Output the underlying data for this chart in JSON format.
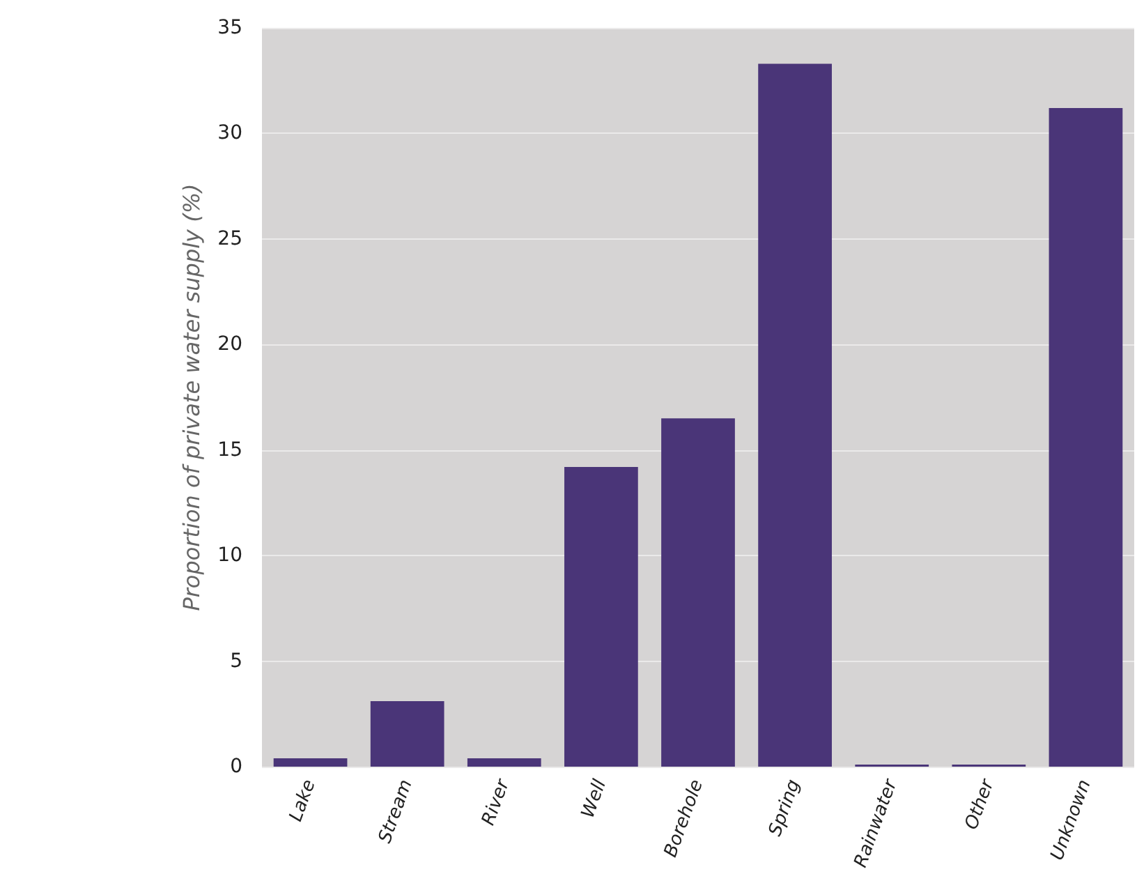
{
  "chart_data": {
    "type": "bar",
    "ylabel": "Proportion of private water supply (%)",
    "categories": [
      "Lake",
      "Stream",
      "River",
      "Well",
      "Borehole",
      "Spring",
      "Rainwater",
      "Other",
      "Unknown"
    ],
    "values": [
      0.4,
      3.1,
      0.4,
      14.2,
      16.5,
      33.3,
      0.1,
      0.1,
      31.2
    ],
    "color": "#4a3578",
    "ylim": [
      0,
      35
    ],
    "yticks": [
      0,
      5,
      10,
      15,
      20,
      25,
      30,
      35
    ],
    "grid": "y"
  }
}
